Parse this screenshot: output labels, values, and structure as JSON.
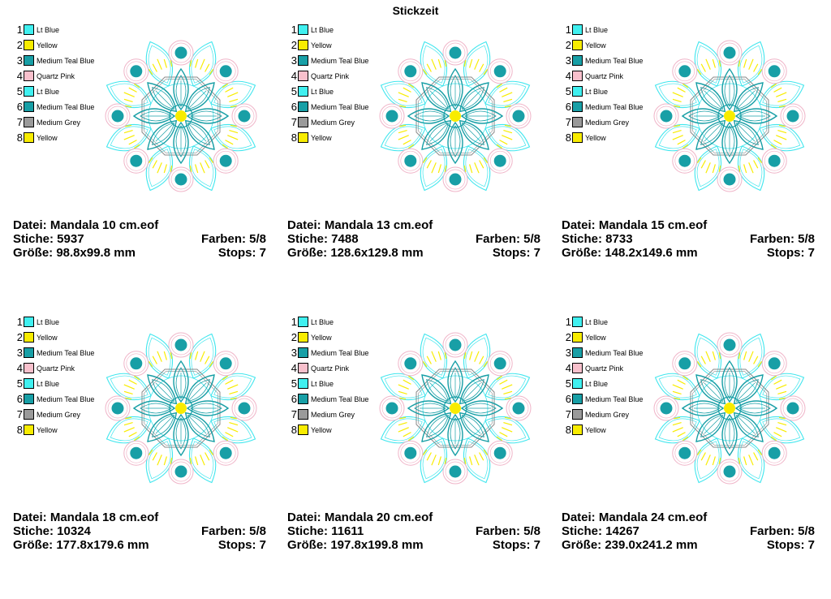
{
  "title": "Stickzeit",
  "legend": [
    {
      "num": "1",
      "name": "Lt Blue",
      "color": "#40f0f0"
    },
    {
      "num": "2",
      "name": "Yellow",
      "color": "#f8ec00"
    },
    {
      "num": "3",
      "name": "Medium Teal Blue",
      "color": "#189fa6"
    },
    {
      "num": "4",
      "name": "Quartz Pink",
      "color": "#f8c0cc"
    },
    {
      "num": "5",
      "name": "Lt Blue",
      "color": "#40f0f0"
    },
    {
      "num": "6",
      "name": "Medium Teal Blue",
      "color": "#189fa6"
    },
    {
      "num": "7",
      "name": "Medium Grey",
      "color": "#9a9a9a"
    },
    {
      "num": "8",
      "name": "Yellow",
      "color": "#f8ec00"
    }
  ],
  "colors": {
    "teal": "#189fa6",
    "cyan": "#40e6ee",
    "pink": "#f0b4c8",
    "yellow": "#f8ec00",
    "grey": "#8a8a8a"
  },
  "designs": [
    {
      "datei": "Datei: Mandala 10 cm.eof",
      "stiche": "Stiche: 5937",
      "farben": "Farben: 5/8",
      "groesse": "Größe: 98.8x99.8 mm",
      "stops": "Stops: 7"
    },
    {
      "datei": "Datei: Mandala 13 cm.eof",
      "stiche": "Stiche: 7488",
      "farben": "Farben: 5/8",
      "groesse": "Größe: 128.6x129.8 mm",
      "stops": "Stops: 7"
    },
    {
      "datei": "Datei: Mandala 15 cm.eof",
      "stiche": "Stiche: 8733",
      "farben": "Farben: 5/8",
      "groesse": "Größe: 148.2x149.6 mm",
      "stops": "Stops: 7"
    },
    {
      "datei": "Datei: Mandala 18 cm.eof",
      "stiche": "Stiche: 10324",
      "farben": "Farben: 5/8",
      "groesse": "Größe: 177.8x179.6 mm",
      "stops": "Stops: 7"
    },
    {
      "datei": "Datei: Mandala 20 cm.eof",
      "stiche": "Stiche: 11611",
      "farben": "Farben: 5/8",
      "groesse": "Größe: 197.8x199.8 mm",
      "stops": "Stops: 7"
    },
    {
      "datei": "Datei: Mandala 24 cm.eof",
      "stiche": "Stiche: 14267",
      "farben": "Farben: 5/8",
      "groesse": "Größe: 239.0x241.2 mm",
      "stops": "Stops: 7"
    }
  ]
}
